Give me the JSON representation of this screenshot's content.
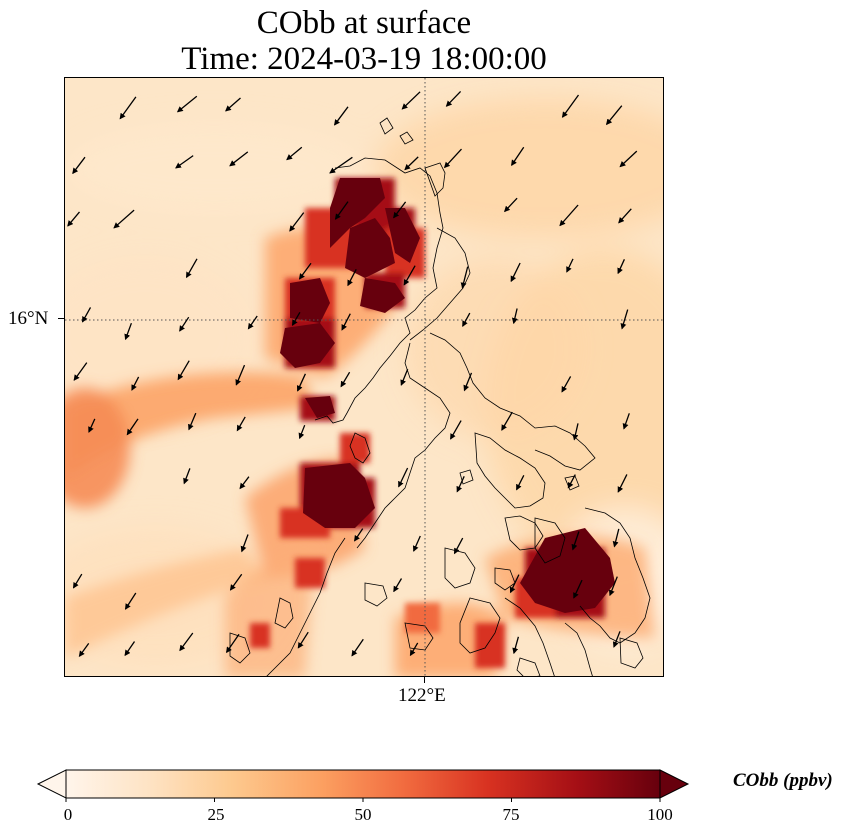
{
  "title": {
    "line1": "CObb at surface",
    "line2": "Time: 2024-03-19 18:00:00"
  },
  "axes": {
    "lat_tick": "16°N",
    "lon_tick": "122°E",
    "gridlines": "dotted"
  },
  "colorbar": {
    "label": "CObb (ppbv)",
    "min": 0,
    "max": 100,
    "ticks": [
      "0",
      "25",
      "50",
      "75",
      "100"
    ],
    "extend": "both",
    "orientation": "horizontal",
    "colormap": [
      "#fff5eb",
      "#fee3c4",
      "#fdc98e",
      "#fca061",
      "#f16b3f",
      "#d83221",
      "#a50f15",
      "#67000d"
    ]
  },
  "colors": {
    "background_field": "#fde6c8",
    "coastline": "#000000",
    "wind_arrow": "#000000"
  }
}
